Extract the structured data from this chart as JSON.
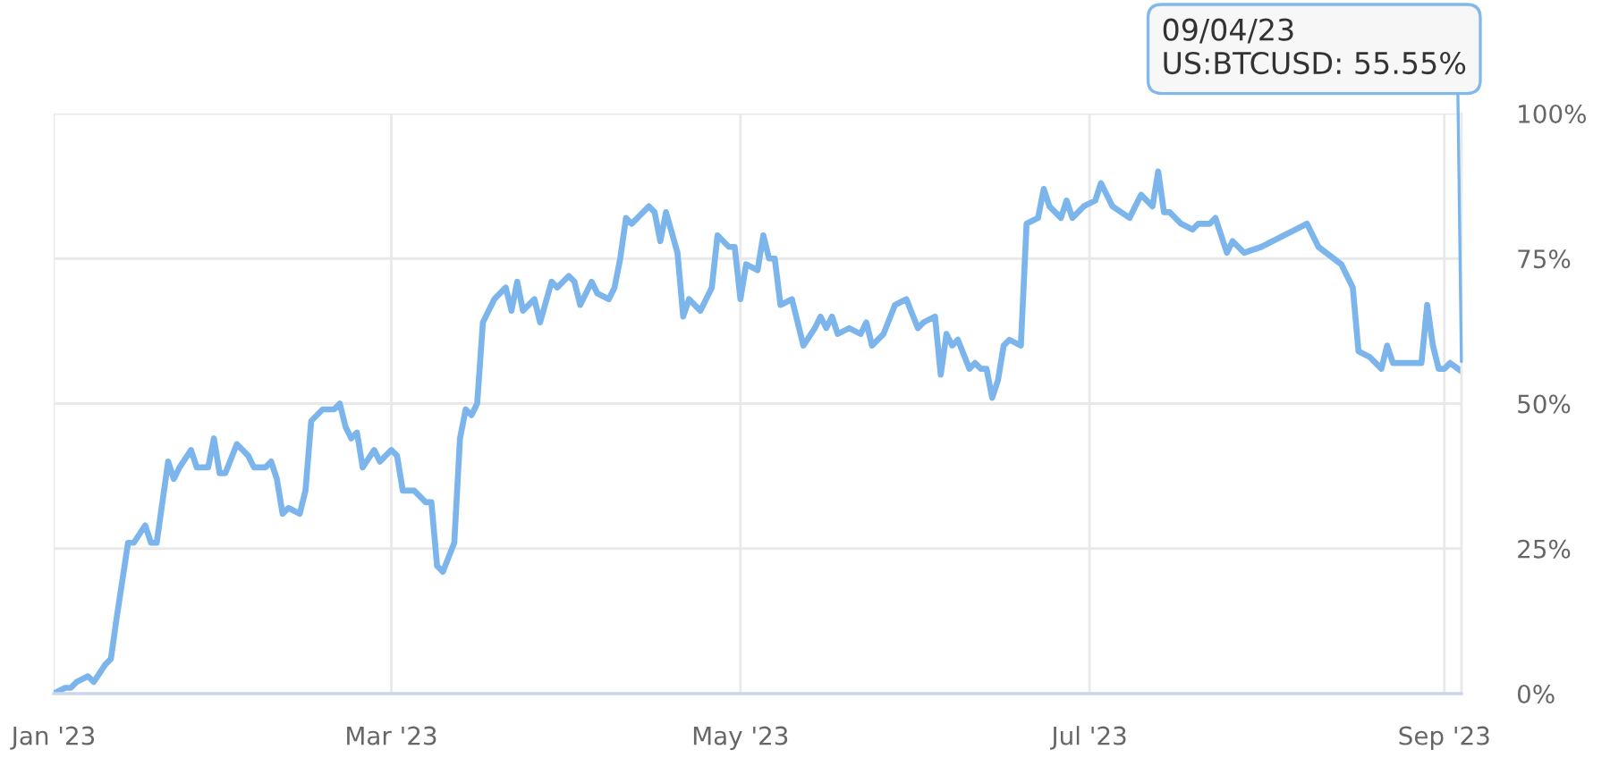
{
  "chart_data": {
    "type": "line",
    "color": "#7cb5ec",
    "line_style": "solid",
    "x": [
      "2023-01-01",
      "2023-01-03",
      "2023-01-04",
      "2023-01-05",
      "2023-01-07",
      "2023-01-08",
      "2023-01-10",
      "2023-01-11",
      "2023-01-12",
      "2023-01-14",
      "2023-01-15",
      "2023-01-17",
      "2023-01-18",
      "2023-01-19",
      "2023-01-21",
      "2023-01-22",
      "2023-01-23",
      "2023-01-25",
      "2023-01-26",
      "2023-01-28",
      "2023-01-29",
      "2023-01-30",
      "2023-01-31",
      "2023-02-02",
      "2023-02-03",
      "2023-02-04",
      "2023-02-05",
      "2023-02-07",
      "2023-02-08",
      "2023-02-09",
      "2023-02-10",
      "2023-02-11",
      "2023-02-13",
      "2023-02-14",
      "2023-02-15",
      "2023-02-17",
      "2023-02-18",
      "2023-02-19",
      "2023-02-20",
      "2023-02-21",
      "2023-02-22",
      "2023-02-23",
      "2023-02-24",
      "2023-02-26",
      "2023-02-27",
      "2023-03-01",
      "2023-03-02",
      "2023-03-03",
      "2023-03-05",
      "2023-03-07",
      "2023-03-08",
      "2023-03-09",
      "2023-03-10",
      "2023-03-12",
      "2023-03-13",
      "2023-03-14",
      "2023-03-15",
      "2023-03-16",
      "2023-03-17",
      "2023-03-19",
      "2023-03-21",
      "2023-03-22",
      "2023-03-23",
      "2023-03-24",
      "2023-03-26",
      "2023-03-27",
      "2023-03-29",
      "2023-03-30",
      "2023-04-01",
      "2023-04-02",
      "2023-04-03",
      "2023-04-05",
      "2023-04-06",
      "2023-04-08",
      "2023-04-09",
      "2023-04-10",
      "2023-04-11",
      "2023-04-12",
      "2023-04-14",
      "2023-04-15",
      "2023-04-16",
      "2023-04-17",
      "2023-04-18",
      "2023-04-20",
      "2023-04-21",
      "2023-04-22",
      "2023-04-24",
      "2023-04-26",
      "2023-04-27",
      "2023-04-29",
      "2023-04-30",
      "2023-05-01",
      "2023-05-02",
      "2023-05-04",
      "2023-05-05",
      "2023-05-06",
      "2023-05-07",
      "2023-05-08",
      "2023-05-10",
      "2023-05-12",
      "2023-05-14",
      "2023-05-15",
      "2023-05-16",
      "2023-05-17",
      "2023-05-18",
      "2023-05-20",
      "2023-05-22",
      "2023-05-23",
      "2023-05-24",
      "2023-05-26",
      "2023-05-28",
      "2023-05-30",
      "2023-06-01",
      "2023-06-02",
      "2023-06-04",
      "2023-06-05",
      "2023-06-06",
      "2023-06-07",
      "2023-06-08",
      "2023-06-10",
      "2023-06-11",
      "2023-06-12",
      "2023-06-13",
      "2023-06-14",
      "2023-06-15",
      "2023-06-16",
      "2023-06-17",
      "2023-06-19",
      "2023-06-20",
      "2023-06-22",
      "2023-06-23",
      "2023-06-24",
      "2023-06-26",
      "2023-06-27",
      "2023-06-28",
      "2023-06-30",
      "2023-07-02",
      "2023-07-03",
      "2023-07-05",
      "2023-07-08",
      "2023-07-10",
      "2023-07-12",
      "2023-07-13",
      "2023-07-14",
      "2023-07-15",
      "2023-07-17",
      "2023-07-19",
      "2023-07-20",
      "2023-07-22",
      "2023-07-23",
      "2023-07-24",
      "2023-07-25",
      "2023-07-26",
      "2023-07-28",
      "2023-07-31",
      "2023-08-04",
      "2023-08-08",
      "2023-08-10",
      "2023-08-14",
      "2023-08-16",
      "2023-08-17",
      "2023-08-19",
      "2023-08-21",
      "2023-08-22",
      "2023-08-23",
      "2023-08-25",
      "2023-08-28",
      "2023-08-29",
      "2023-08-30",
      "2023-08-31",
      "2023-09-01",
      "2023-09-02",
      "2023-09-04"
    ],
    "values": [
      0,
      1,
      1,
      2,
      3,
      2,
      5,
      6,
      13,
      26,
      26,
      29,
      26,
      26,
      40,
      37,
      39,
      42,
      39,
      39,
      44,
      38,
      38,
      43,
      42,
      41,
      39,
      39,
      40,
      37,
      31,
      32,
      31,
      35,
      47,
      49,
      49,
      49,
      50,
      46,
      44,
      45,
      39,
      42,
      40,
      42,
      41,
      35,
      35,
      33,
      33,
      22,
      21,
      26,
      44,
      49,
      48,
      50,
      64,
      68,
      70,
      66,
      71,
      66,
      68,
      64,
      71,
      70,
      72,
      71,
      67,
      71,
      69,
      68,
      70,
      75,
      82,
      81,
      83,
      84,
      83,
      78,
      83,
      76,
      65,
      68,
      66,
      70,
      79,
      77,
      77,
      68,
      74,
      73,
      79,
      75,
      75,
      67,
      68,
      60,
      63,
      65,
      63,
      65,
      62,
      63,
      62,
      64,
      60,
      62,
      67,
      68,
      63,
      64,
      65,
      55,
      62,
      60,
      61,
      56,
      57,
      56,
      56,
      51,
      54,
      60,
      61,
      60,
      81,
      82,
      87,
      84,
      82,
      85,
      82,
      84,
      85,
      88,
      84,
      82,
      86,
      84,
      90,
      83,
      83,
      81,
      80,
      81,
      81,
      82,
      79,
      76,
      78,
      76,
      77,
      79,
      81,
      77,
      74,
      70,
      59,
      58,
      56,
      60,
      57,
      57,
      57,
      67,
      60,
      56,
      56,
      57,
      55.55
    ],
    "xlim": [
      "2023-01-01",
      "2023-09-04"
    ],
    "xticks": [
      {
        "value": "2023-01-01",
        "label": "Jan '23"
      },
      {
        "value": "2023-03-01",
        "label": "Mar '23"
      },
      {
        "value": "2023-05-01",
        "label": "May '23"
      },
      {
        "value": "2023-07-01",
        "label": "Jul '23"
      },
      {
        "value": "2023-09-01",
        "label": "Sep '23"
      }
    ],
    "ylim": [
      0,
      100
    ],
    "yticks": [
      {
        "value": 0,
        "label": "0%"
      },
      {
        "value": 25,
        "label": "25%"
      },
      {
        "value": 50,
        "label": "50%"
      },
      {
        "value": 75,
        "label": "75%"
      },
      {
        "value": 100,
        "label": "100%"
      }
    ],
    "grid": true,
    "annotations": [
      {
        "text": "09/04/23\nUS:BTCUSD: 55.55%",
        "x": "2023-09-04",
        "y": 55.55
      }
    ]
  }
}
